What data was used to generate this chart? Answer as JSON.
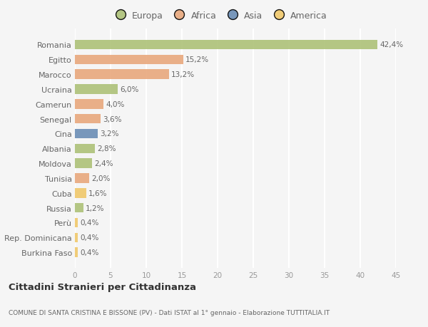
{
  "categories": [
    "Romania",
    "Egitto",
    "Marocco",
    "Ucraina",
    "Camerun",
    "Senegal",
    "Cina",
    "Albania",
    "Moldova",
    "Tunisia",
    "Cuba",
    "Russia",
    "Perù",
    "Rep. Dominicana",
    "Burkina Faso"
  ],
  "values": [
    42.4,
    15.2,
    13.2,
    6.0,
    4.0,
    3.6,
    3.2,
    2.8,
    2.4,
    2.0,
    1.6,
    1.2,
    0.4,
    0.4,
    0.4
  ],
  "labels": [
    "42,4%",
    "15,2%",
    "13,2%",
    "6,0%",
    "4,0%",
    "3,6%",
    "3,2%",
    "2,8%",
    "2,4%",
    "2,0%",
    "1,6%",
    "1,2%",
    "0,4%",
    "0,4%",
    "0,4%"
  ],
  "colors": [
    "#adc178",
    "#e8a87c",
    "#e8a87c",
    "#adc178",
    "#e8a87c",
    "#e8a87c",
    "#6b8db5",
    "#adc178",
    "#adc178",
    "#e8a87c",
    "#f0c86a",
    "#adc178",
    "#f0c86a",
    "#f0c86a",
    "#f0c86a"
  ],
  "legend_labels": [
    "Europa",
    "Africa",
    "Asia",
    "America"
  ],
  "legend_colors": [
    "#adc178",
    "#e8a87c",
    "#6b8db5",
    "#f0c86a"
  ],
  "title": "Cittadini Stranieri per Cittadinanza",
  "subtitle": "COMUNE DI SANTA CRISTINA E BISSONE (PV) - Dati ISTAT al 1° gennaio - Elaborazione TUTTITALIA.IT",
  "xlim": [
    0,
    45
  ],
  "xticks": [
    0,
    5,
    10,
    15,
    20,
    25,
    30,
    35,
    40,
    45
  ],
  "background_color": "#f5f5f5",
  "grid_color": "#ffffff",
  "bar_height": 0.65
}
